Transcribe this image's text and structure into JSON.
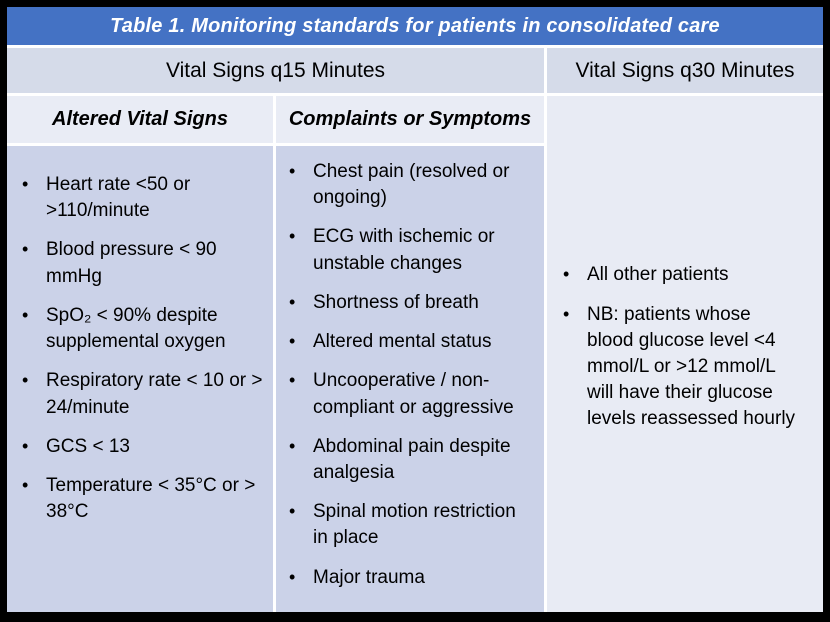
{
  "bullet_char": "•",
  "colors": {
    "title_bar": "#4472C4",
    "header_row": "#D5DBE9",
    "subheader_row": "#E9ECF5",
    "body_cell": "#CBD2E8",
    "right_cell": "#E8EBF4",
    "grid_line": "#FFFFFF",
    "border": "#000000",
    "title_text": "#FFFFFF",
    "body_text": "#000000"
  },
  "table": {
    "title": "Table 1. Monitoring standards for patients in consolidated care",
    "headers": {
      "q15": "Vital Signs q15 Minutes",
      "q30": "Vital Signs q30 Minutes"
    },
    "subheaders": {
      "altered": "Altered Vital Signs",
      "complaints": "Complaints or Symptoms"
    },
    "altered_vital_signs_items": [
      "Heart rate <50 or >110/minute",
      "Blood pressure < 90 mmHg",
      "SpO₂ < 90% despite supplemental oxygen",
      "Respiratory rate < 10 or > 24/minute",
      "GCS < 13",
      "Temperature < 35°C or > 38°C"
    ],
    "complaints_items": [
      "Chest pain (resolved or ongoing)",
      "ECG with ischemic or unstable changes",
      "Shortness of breath",
      "Altered mental status",
      "Uncooperative / non-compliant or aggressive",
      "Abdominal pain despite analgesia",
      "Spinal motion restriction in place",
      "Major trauma"
    ],
    "q30_items": [
      "All other patients",
      "NB: patients whose blood glucose level <4 mmol/L or >12 mmol/L will have their glucose levels reassessed hourly"
    ]
  }
}
